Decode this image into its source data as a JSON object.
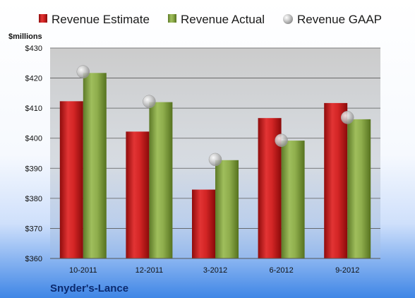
{
  "chart_data": {
    "type": "bar",
    "unit_label": "$millions",
    "company": "Snyder's-Lance",
    "categories": [
      "10-2011",
      "12-2011",
      "3-2012",
      "6-2012",
      "9-2012"
    ],
    "series": [
      {
        "name": "Revenue Estimate",
        "kind": "bar",
        "color": "#c81e1e",
        "values": [
          412.3,
          402.2,
          382.9,
          406.7,
          411.7
        ]
      },
      {
        "name": "Revenue Actual",
        "kind": "bar",
        "color": "#8aa84a",
        "values": [
          421.7,
          412.0,
          392.7,
          399.2,
          406.3
        ]
      },
      {
        "name": "Revenue GAAP",
        "kind": "marker",
        "color": "#b9b9b9",
        "values": [
          422.1,
          412.2,
          392.9,
          399.3,
          406.9
        ]
      }
    ],
    "yticks": [
      "$430",
      "$420",
      "$410",
      "$400",
      "$390",
      "$380",
      "$370",
      "$360"
    ],
    "ylim": [
      360,
      430
    ],
    "legend_position": "top",
    "grid": true
  }
}
